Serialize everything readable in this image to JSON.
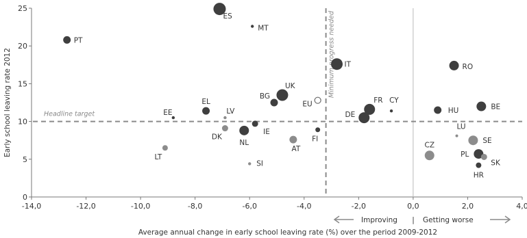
{
  "chart_data": {
    "type": "scatter",
    "xlabel": "Average annual change in early school leaving rate (%) over the period 2009-2012",
    "ylabel": "Early school leaving rate 2012",
    "xlim": [
      -14,
      4
    ],
    "ylim": [
      0,
      25
    ],
    "x_ticks": [
      -14,
      -12,
      -10,
      -8,
      -6,
      -4,
      -2,
      0,
      2,
      4
    ],
    "x_tick_labels": [
      "-14,0",
      "-12,0",
      "-10,0",
      "-8,0",
      "-6,0",
      "-4,0",
      "-2,0",
      "0,0",
      "2,0",
      "4,0"
    ],
    "y_ticks": [
      0,
      5,
      10,
      15,
      20,
      25
    ],
    "y_tick_labels": [
      "0",
      "5",
      "10",
      "15",
      "20",
      "25"
    ],
    "grid": false,
    "headline_target": {
      "value": 10,
      "label": "Headline target"
    },
    "minimum_progress": {
      "value": -3.2,
      "label": "Minimum progress needed"
    },
    "zero_line": 0,
    "direction_labels": {
      "improving": "Improving",
      "separator": "|",
      "worse": "Getting worse"
    },
    "points": [
      {
        "label": "ES",
        "x": -7.1,
        "y": 24.9,
        "size": 9,
        "shade": "dark",
        "lx": 5,
        "ly": 14,
        "anchor": "start"
      },
      {
        "label": "MT",
        "x": -5.9,
        "y": 22.6,
        "size": 2.2,
        "shade": "dark",
        "lx": 8,
        "ly": 6,
        "anchor": "start"
      },
      {
        "label": "PT",
        "x": -12.7,
        "y": 20.8,
        "size": 5.5,
        "shade": "dark",
        "lx": 10,
        "ly": 4,
        "anchor": "start"
      },
      {
        "label": "IT",
        "x": -2.8,
        "y": 17.6,
        "size": 8.5,
        "shade": "dark",
        "lx": 11,
        "ly": 4,
        "anchor": "start"
      },
      {
        "label": "RO",
        "x": 1.5,
        "y": 17.4,
        "size": 7,
        "shade": "dark",
        "lx": 12,
        "ly": 5,
        "anchor": "start"
      },
      {
        "label": "UK",
        "x": -4.8,
        "y": 13.5,
        "size": 8.5,
        "shade": "dark",
        "lx": 4,
        "ly": -10,
        "anchor": "start"
      },
      {
        "label": "BG",
        "x": -5.1,
        "y": 12.5,
        "size": 5.5,
        "shade": "dark",
        "lx": -6,
        "ly": -6,
        "anchor": "end"
      },
      {
        "label": "EU",
        "x": -3.5,
        "y": 12.8,
        "size": 4.5,
        "shade": "hollow",
        "lx": -8,
        "ly": 9,
        "anchor": "end"
      },
      {
        "label": "FR",
        "x": -1.6,
        "y": 11.6,
        "size": 8,
        "shade": "dark",
        "lx": 6,
        "ly": -10,
        "anchor": "start"
      },
      {
        "label": "DE",
        "x": -1.8,
        "y": 10.5,
        "size": 8,
        "shade": "dark",
        "lx": -13,
        "ly": -1,
        "anchor": "end"
      },
      {
        "label": "CY",
        "x": -0.8,
        "y": 11.4,
        "size": 2.2,
        "shade": "dark",
        "lx": -3,
        "ly": -12,
        "anchor": "start"
      },
      {
        "label": "HU",
        "x": 0.9,
        "y": 11.5,
        "size": 5.5,
        "shade": "dark",
        "lx": 15,
        "ly": 4,
        "anchor": "start"
      },
      {
        "label": "BE",
        "x": 2.5,
        "y": 12.0,
        "size": 7,
        "shade": "dark",
        "lx": 14,
        "ly": 4,
        "anchor": "start"
      },
      {
        "label": "EL",
        "x": -7.6,
        "y": 11.4,
        "size": 5.5,
        "shade": "dark",
        "lx": 0,
        "ly": -10,
        "anchor": "middle"
      },
      {
        "label": "LV",
        "x": -6.9,
        "y": 10.5,
        "size": 2.2,
        "shade": "light",
        "lx": 2,
        "ly": -6,
        "anchor": "start"
      },
      {
        "label": "EE",
        "x": -8.8,
        "y": 10.5,
        "size": 2.2,
        "shade": "dark",
        "lx": -8,
        "ly": -4,
        "anchor": "middle"
      },
      {
        "label": "DK",
        "x": -6.9,
        "y": 9.1,
        "size": 4.5,
        "shade": "light",
        "lx": -12,
        "ly": 16,
        "anchor": "middle"
      },
      {
        "label": "NL",
        "x": -6.2,
        "y": 8.8,
        "size": 7,
        "shade": "dark",
        "lx": 0,
        "ly": 21,
        "anchor": "middle"
      },
      {
        "label": "IE",
        "x": -5.8,
        "y": 9.7,
        "size": 4.5,
        "shade": "dark",
        "lx": 12,
        "ly": 15,
        "anchor": "start"
      },
      {
        "label": "AT",
        "x": -4.4,
        "y": 7.6,
        "size": 5.5,
        "shade": "light",
        "lx": 4,
        "ly": 17,
        "anchor": "middle"
      },
      {
        "label": "FI",
        "x": -3.5,
        "y": 8.9,
        "size": 3.5,
        "shade": "dark",
        "lx": -4,
        "ly": 17,
        "anchor": "middle"
      },
      {
        "label": "LU",
        "x": 1.6,
        "y": 8.1,
        "size": 2,
        "shade": "light",
        "lx": 0,
        "ly": -10,
        "anchor": "start"
      },
      {
        "label": "SE",
        "x": 2.2,
        "y": 7.5,
        "size": 7,
        "shade": "light",
        "lx": 14,
        "ly": 4,
        "anchor": "start"
      },
      {
        "label": "CZ",
        "x": 0.6,
        "y": 5.5,
        "size": 7,
        "shade": "light",
        "lx": 0,
        "ly": -12,
        "anchor": "middle"
      },
      {
        "label": "PL",
        "x": 2.4,
        "y": 5.7,
        "size": 7,
        "shade": "dark",
        "lx": -14,
        "ly": 4,
        "anchor": "end"
      },
      {
        "label": "SK",
        "x": 2.6,
        "y": 5.3,
        "size": 4.5,
        "shade": "light",
        "lx": 10,
        "ly": 12,
        "anchor": "start"
      },
      {
        "label": "HR",
        "x": 2.4,
        "y": 4.2,
        "size": 4,
        "shade": "dark",
        "lx": 0,
        "ly": 18,
        "anchor": "middle"
      },
      {
        "label": "LT",
        "x": -9.1,
        "y": 6.5,
        "size": 4,
        "shade": "light",
        "lx": -10,
        "ly": 17,
        "anchor": "middle"
      },
      {
        "label": "SI",
        "x": -6.0,
        "y": 4.4,
        "size": 2.2,
        "shade": "light",
        "lx": 10,
        "ly": 3,
        "anchor": "start"
      }
    ],
    "colors": {
      "dark": "#3f3f3f",
      "light": "#8c8c8c",
      "hollow_stroke": "#6b6b6b",
      "ref_line": "#8a8a8a",
      "axis": "#777777"
    }
  }
}
